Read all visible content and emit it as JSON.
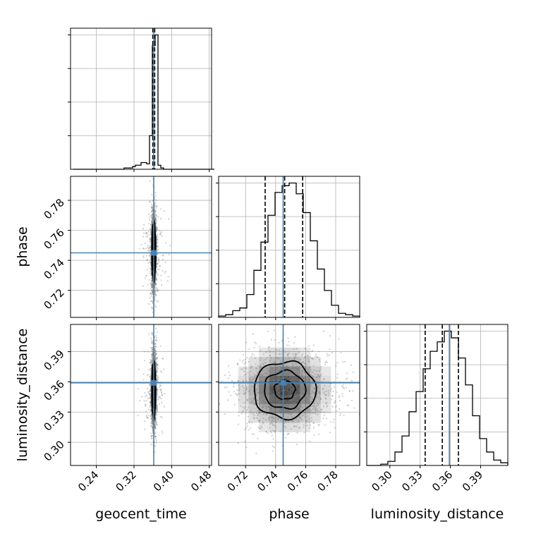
{
  "chart_data": {
    "type": "corner",
    "parameters": [
      "geocent_time",
      "phase",
      "luminosity_distance"
    ],
    "colors": {
      "truth": "#4682b4",
      "hist": "#000000",
      "grid": "#b0b0b0",
      "density": "#000000"
    },
    "grid": true,
    "truths": {
      "geocent_time": 0.362,
      "phase": 0.745,
      "luminosity_distance": 0.359
    },
    "quantiles": {
      "geocent_time": [
        0.36,
        0.362,
        0.364
      ],
      "phase": [
        0.733,
        0.746,
        0.758
      ],
      "luminosity_distance": [
        0.335,
        0.352,
        0.368
      ]
    },
    "ranges": {
      "geocent_time": [
        0.185,
        0.485
      ],
      "phase": [
        0.702,
        0.796
      ],
      "luminosity_distance": [
        0.277,
        0.417
      ]
    },
    "ticks": {
      "geocent_time": [
        "0.24",
        "0.32",
        "0.40",
        "0.48"
      ],
      "phase": [
        "0.72",
        "0.74",
        "0.76",
        "0.78"
      ],
      "luminosity_distance": [
        "0.30",
        "0.33",
        "0.36",
        "0.39"
      ]
    },
    "histograms": {
      "geocent_time": {
        "bin_width": 0.006,
        "x_start": 0.191,
        "counts": [
          0,
          0,
          0,
          0,
          0,
          0,
          0,
          0,
          0,
          0,
          0,
          0,
          0,
          0,
          0,
          0,
          0,
          0,
          1,
          1,
          1,
          2,
          3,
          3,
          5,
          5,
          4,
          25,
          92,
          100,
          3,
          1,
          0,
          0,
          0,
          0,
          0,
          0,
          0,
          0,
          0,
          0,
          0,
          0,
          0,
          0,
          0,
          0,
          0,
          0
        ]
      },
      "phase": {
        "bin_width": 0.0047,
        "x_start": 0.702,
        "counts": [
          1,
          2,
          5,
          7,
          17,
          35,
          56,
          76,
          93,
          98,
          100,
          92,
          78,
          57,
          36,
          20,
          9,
          3,
          2,
          1
        ]
      },
      "luminosity_distance": {
        "bin_width": 0.007,
        "x_start": 0.277,
        "counts": [
          0,
          0,
          1,
          3,
          10,
          22,
          40,
          55,
          72,
          85,
          92,
          100,
          95,
          80,
          60,
          37,
          20,
          10,
          4,
          2
        ]
      }
    },
    "pairs": [
      {
        "x": "geocent_time",
        "y": "phase",
        "center": [
          0.362,
          0.746
        ],
        "sigma": [
          0.0025,
          0.012
        ]
      },
      {
        "x": "geocent_time",
        "y": "luminosity_distance",
        "center": [
          0.362,
          0.352
        ],
        "sigma": [
          0.0025,
          0.017
        ]
      },
      {
        "x": "phase",
        "y": "luminosity_distance",
        "center": [
          0.746,
          0.352
        ],
        "sigma": [
          0.0125,
          0.017
        ]
      }
    ],
    "contour_levels": [
      0.5,
      1.0,
      1.5
    ]
  }
}
